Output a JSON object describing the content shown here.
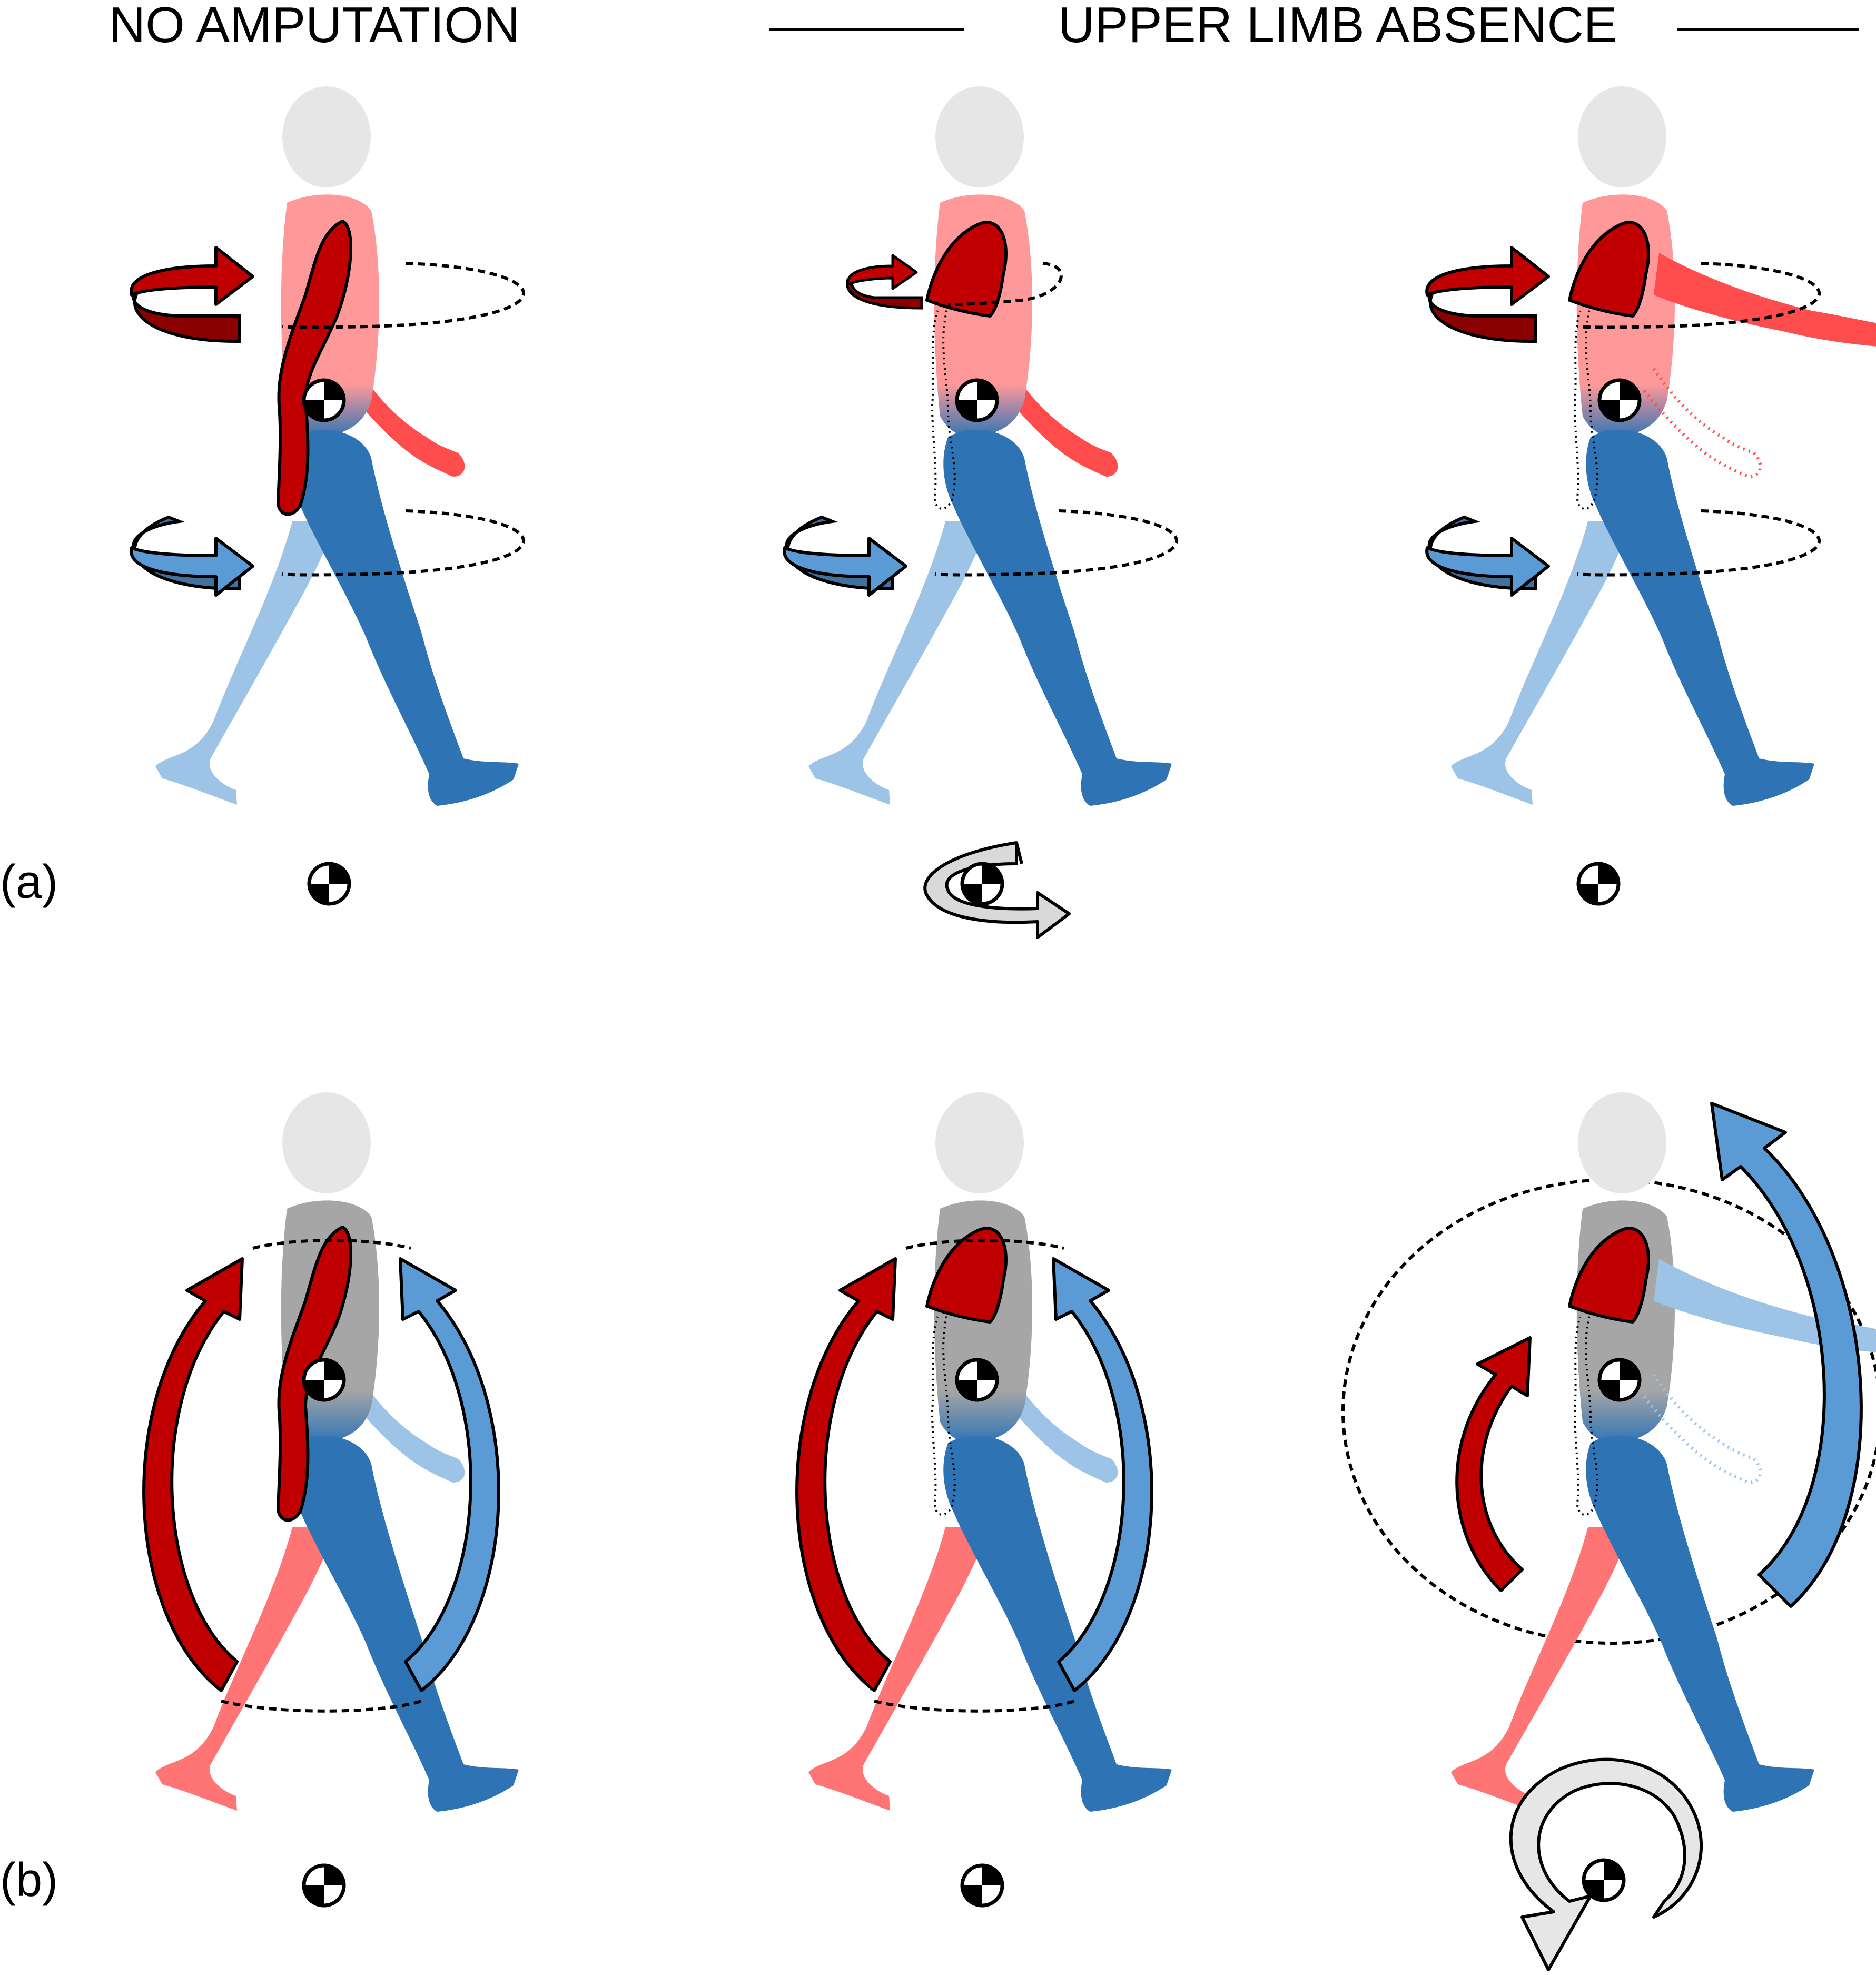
{
  "header": {
    "left_title": "NO AMPUTATION",
    "right_title": "UPPER LIMB ABSENCE"
  },
  "rows": [
    {
      "label": "(a)"
    },
    {
      "label": "(b)"
    }
  ],
  "colors": {
    "head": "#e6e6e6",
    "upper_dark_red": "#c00000",
    "upper_red": "#ff4d4d",
    "torso_pink": "#ff9999",
    "leg_dark_blue": "#2e74b5",
    "leg_light_blue": "#9dc3e6",
    "arrow_blue": "#5b9bd5",
    "torso_gray": "#a6a6a6",
    "leg_salmon": "#ff7575",
    "net_rotation_gray": "#d9d9d9"
  },
  "icons": [
    "center-of-mass-icon",
    "rotation-arrow-icon",
    "human-figure-icon"
  ]
}
